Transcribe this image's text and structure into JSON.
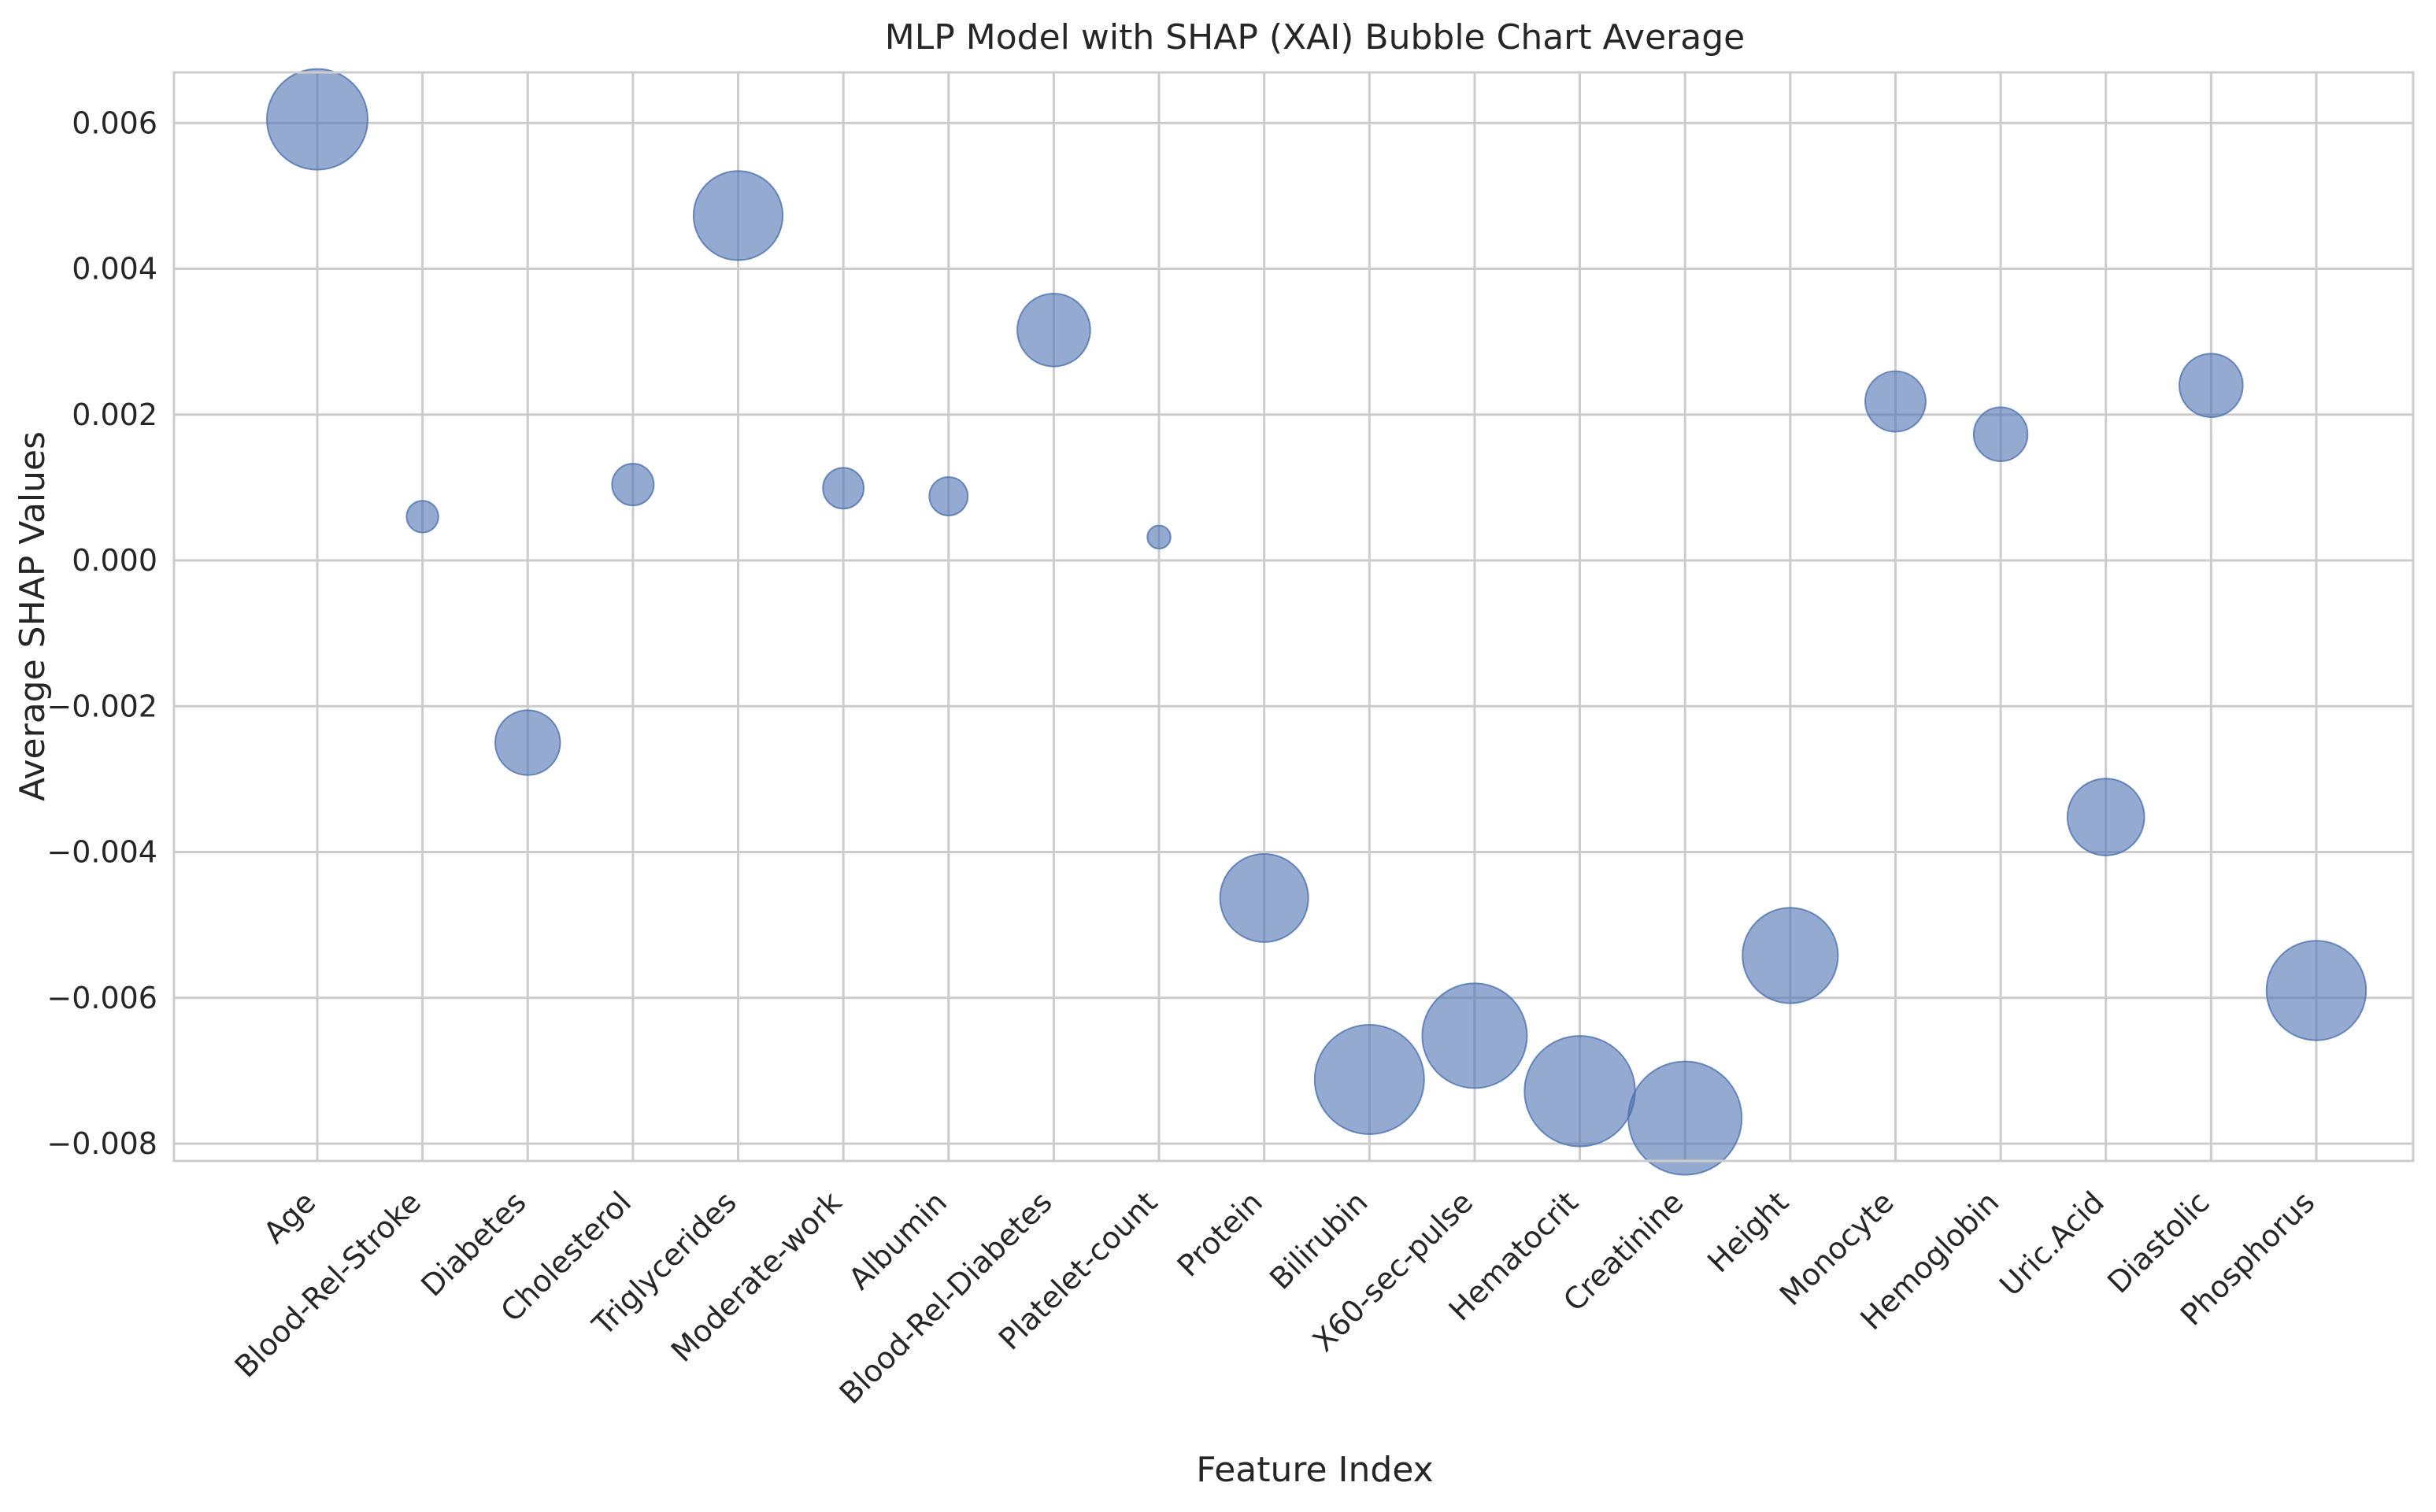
{
  "chart_data": {
    "type": "scatter",
    "subtype": "bubble",
    "title": "MLP Model with SHAP (XAI) Bubble Chart Average",
    "xlabel": "Feature Index",
    "ylabel": "Average SHAP Values",
    "ylim": [
      -0.0083,
      0.0067
    ],
    "yticks": [
      {
        "value": 0.006,
        "label": "0.006"
      },
      {
        "value": 0.004,
        "label": "0.004"
      },
      {
        "value": 0.002,
        "label": "0.002"
      },
      {
        "value": 0.0,
        "label": "0.000"
      },
      {
        "value": -0.002,
        "label": "−0.002"
      },
      {
        "value": -0.004,
        "label": "−0.004"
      },
      {
        "value": -0.006,
        "label": "−0.006"
      },
      {
        "value": -0.008,
        "label": "−0.008"
      }
    ],
    "grid": true,
    "legend": "none",
    "bubble_color": "#4c72b0",
    "bubble_opacity": 0.6,
    "bubble_size_encoding": "absolute SHAP value",
    "categories": [
      "Age",
      "Blood-Rel-Stroke",
      "Diabetes",
      "Cholesterol",
      "Triglycerides",
      "Moderate-work",
      "Albumin",
      "Blood-Rel-Diabetes",
      "Platelet-count",
      "Protein",
      "Bilirubin",
      "X60-sec-pulse",
      "Hematocrit",
      "Creatinine",
      "Height",
      "Monocyte",
      "Hemoglobin",
      "Uric.Acid",
      "Diastolic",
      "Phosphorus"
    ],
    "values": [
      0.00605,
      0.0006,
      -0.0025,
      0.00104,
      0.00473,
      0.00099,
      0.00088,
      0.00316,
      0.00032,
      -0.00463,
      -0.00712,
      -0.00652,
      -0.00728,
      -0.00765,
      -0.00542,
      0.00218,
      0.00173,
      -0.00352,
      0.0024,
      -0.0059
    ]
  }
}
